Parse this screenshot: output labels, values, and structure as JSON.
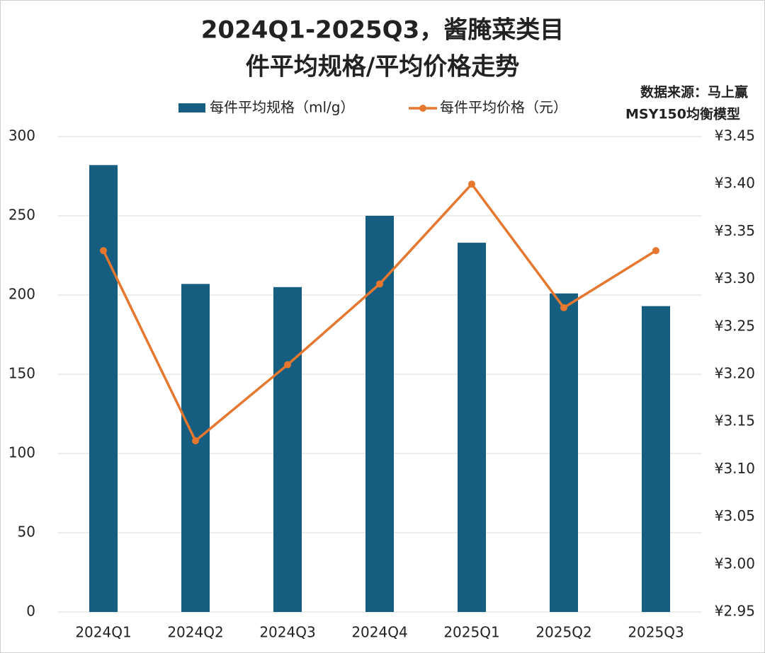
{
  "chart_data": {
    "type": "bar-line",
    "title": [
      "2024Q1-2025Q3，酱腌菜类目",
      "件平均规格/平均价格走势"
    ],
    "source": [
      "数据来源：马上赢",
      "MSY150均衡模型"
    ],
    "categories": [
      "2024Q1",
      "2024Q2",
      "2024Q3",
      "2024Q4",
      "2025Q1",
      "2025Q2",
      "2025Q3"
    ],
    "series": [
      {
        "name": "每件平均规格（ml/g）",
        "type": "bar",
        "color": "#165e80",
        "values": [
          282,
          207,
          205,
          250,
          233,
          201,
          193
        ]
      },
      {
        "name": "每件平均价格（元）",
        "type": "line",
        "axis": "y2",
        "color": "#e5772f",
        "values": [
          3.33,
          3.13,
          3.21,
          3.295,
          3.4,
          3.27,
          3.33
        ]
      }
    ],
    "ylim": [
      0,
      300
    ],
    "yticks": [
      0,
      50,
      100,
      150,
      200,
      250,
      300
    ],
    "y2lim": [
      2.95,
      3.45
    ],
    "y2ticks": [
      {
        "value": 2.95,
        "label": "¥2.95"
      },
      {
        "value": 3.0,
        "label": "¥3.00"
      },
      {
        "value": 3.05,
        "label": "¥3.05"
      },
      {
        "value": 3.1,
        "label": "¥3.10"
      },
      {
        "value": 3.15,
        "label": "¥3.15"
      },
      {
        "value": 3.2,
        "label": "¥3.20"
      },
      {
        "value": 3.25,
        "label": "¥3.25"
      },
      {
        "value": 3.3,
        "label": "¥3.30"
      },
      {
        "value": 3.35,
        "label": "¥3.35"
      },
      {
        "value": 3.4,
        "label": "¥3.40"
      },
      {
        "value": 3.45,
        "label": "¥3.45"
      }
    ],
    "grid": true
  }
}
